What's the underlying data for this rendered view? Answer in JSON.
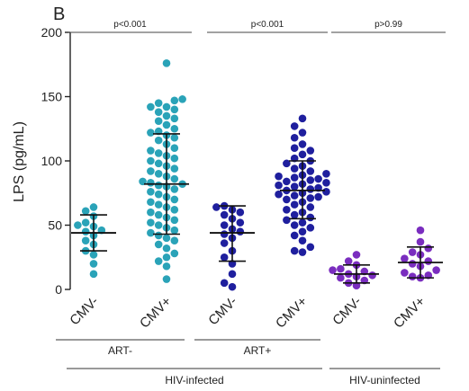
{
  "panel_label": "B",
  "chart_data": {
    "type": "scatter",
    "ylabel": "LPS (pg/mL)",
    "ylim": [
      0,
      200
    ],
    "yticks": [
      0,
      50,
      100,
      150,
      200
    ],
    "categories": [
      "CMV-",
      "CMV+",
      "CMV-",
      "CMV+",
      "CMV-",
      "CMV+"
    ],
    "groups": [
      {
        "name": "ART-",
        "color": "#2aa3b8",
        "columns": [
          0,
          1
        ]
      },
      {
        "name": "ART+",
        "color": "#1f1f9e",
        "columns": [
          2,
          3
        ]
      },
      {
        "name": "",
        "color": "#7a2dbf",
        "columns": [
          4,
          5
        ]
      }
    ],
    "supergroups": [
      {
        "name": "HIV-infected",
        "columns": [
          0,
          1,
          2,
          3
        ]
      },
      {
        "name": "HIV-uninfected",
        "columns": [
          4,
          5
        ]
      }
    ],
    "comparisons": [
      {
        "label": "p<0.001",
        "columns": [
          0,
          1
        ]
      },
      {
        "label": "p<0.001",
        "columns": [
          2,
          3
        ]
      },
      {
        "label": "p>0.99",
        "columns": [
          4,
          5
        ]
      }
    ],
    "series": [
      {
        "category_index": 0,
        "mean": 44,
        "sd_low": 30,
        "sd_high": 58,
        "values": [
          64,
          61,
          57,
          52,
          50,
          49,
          46,
          45,
          42,
          38,
          35,
          30,
          27,
          20,
          12
        ]
      },
      {
        "category_index": 1,
        "mean": 82,
        "sd_low": 43,
        "sd_high": 121,
        "values": [
          176,
          148,
          147,
          145,
          142,
          142,
          140,
          138,
          135,
          133,
          131,
          128,
          125,
          123,
          122,
          120,
          118,
          116,
          113,
          110,
          108,
          106,
          104,
          102,
          100,
          98,
          96,
          94,
          92,
          90,
          88,
          86,
          84,
          83,
          82,
          81,
          80,
          78,
          76,
          74,
          72,
          70,
          68,
          66,
          64,
          62,
          60,
          58,
          56,
          54,
          52,
          50,
          48,
          46,
          44,
          42,
          40,
          38,
          35,
          32,
          28,
          25,
          22,
          18,
          8
        ]
      },
      {
        "category_index": 2,
        "mean": 44,
        "sd_low": 22,
        "sd_high": 65,
        "values": [
          65,
          64,
          62,
          60,
          58,
          55,
          52,
          50,
          47,
          45,
          43,
          40,
          36,
          30,
          25,
          20,
          12,
          5,
          2
        ]
      },
      {
        "category_index": 3,
        "mean": 77,
        "sd_low": 55,
        "sd_high": 100,
        "values": [
          133,
          127,
          122,
          118,
          113,
          110,
          108,
          105,
          102,
          100,
          98,
          96,
          94,
          92,
          90,
          89,
          88,
          87,
          86,
          85,
          84,
          83,
          82,
          81,
          80,
          79,
          78,
          77,
          76,
          75,
          74,
          73,
          72,
          71,
          70,
          68,
          66,
          64,
          62,
          60,
          58,
          56,
          54,
          52,
          50,
          48,
          45,
          42,
          38,
          33,
          30,
          29
        ]
      },
      {
        "category_index": 4,
        "mean": 12,
        "sd_low": 5,
        "sd_high": 19,
        "values": [
          27,
          22,
          19,
          16,
          15,
          14,
          12,
          11,
          10,
          9,
          7,
          5,
          3
        ]
      },
      {
        "category_index": 5,
        "mean": 21,
        "sd_low": 9,
        "sd_high": 33,
        "values": [
          46,
          37,
          32,
          29,
          27,
          24,
          22,
          20,
          18,
          15,
          13,
          11,
          10,
          9
        ]
      }
    ]
  }
}
